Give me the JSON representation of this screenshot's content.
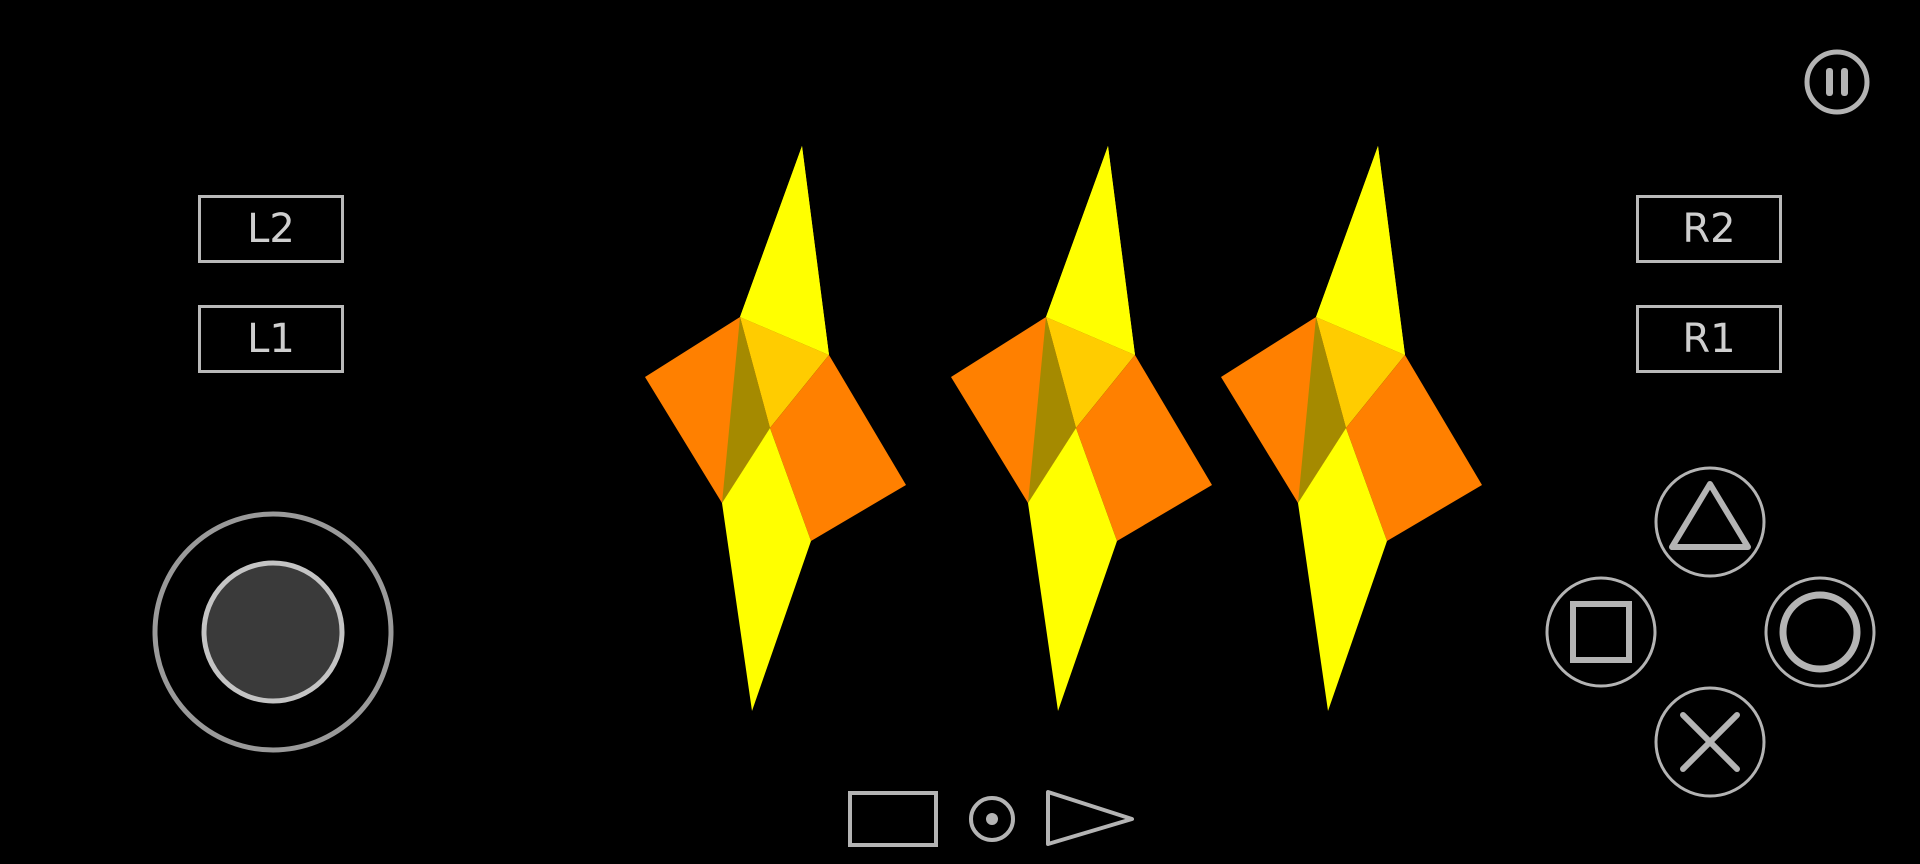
{
  "emulator": {
    "left_shoulder": {
      "l2_label": "L2",
      "l1_label": "L1"
    },
    "right_shoulder": {
      "r2_label": "R2",
      "r1_label": "R1"
    },
    "icons": {
      "pause": "pause-icon",
      "analog_stick": "analog-stick-icon",
      "triangle": "triangle-icon",
      "square": "square-icon",
      "circle": "circle-icon",
      "cross": "cross-icon",
      "select": "select-icon",
      "home": "home-icon",
      "start": "start-icon"
    },
    "game_scene": {
      "shape_count": 3,
      "colors": {
        "yellow": "#ffff00",
        "orange": "#ff8000",
        "gold": "#ffcc00",
        "olive": "#a58a00"
      }
    },
    "ui_colors": {
      "control_stroke": "#b4b4b4",
      "stick_fill": "#3a3a3a",
      "background": "#000000"
    }
  }
}
